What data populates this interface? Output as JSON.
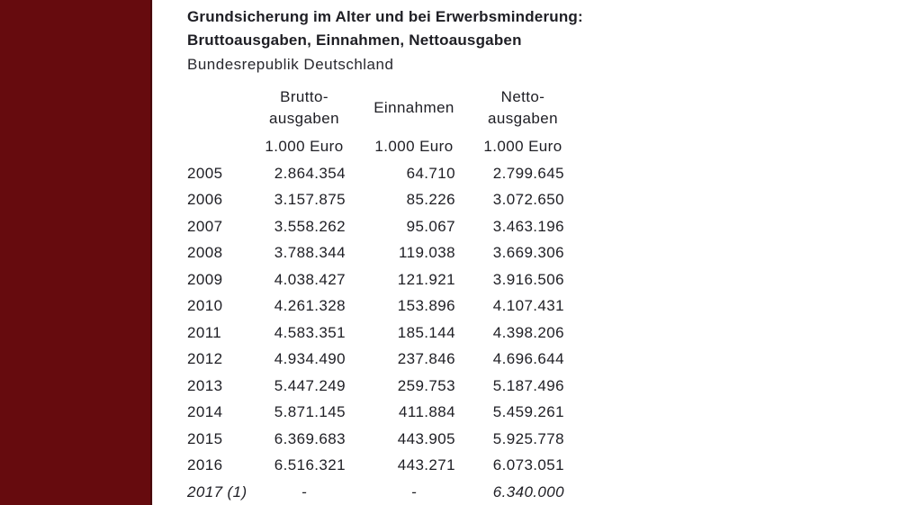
{
  "colors": {
    "sidebar": "#660B0E",
    "sidebar_edge": "#470709",
    "sidebar_separator": "#F2E9E9",
    "text": "#1E1E24",
    "background": "#FFFFFF"
  },
  "header": {
    "title_line1": "Grundsicherung im Alter und bei Erwerbsminderung:",
    "title_line2": "Bruttoausgaben, Einnahmen, Nettoausgaben",
    "subtitle": "Bundesrepublik Deutschland"
  },
  "table_header": {
    "col_year": "",
    "col_brutto": "Brutto-\nausgaben",
    "col_einnahmen": "Einnahmen",
    "col_netto": "Netto-\nausgaben",
    "unit": "1.000 Euro"
  },
  "chart_data": {
    "type": "table",
    "title": "Grundsicherung im Alter und bei Erwerbsminderung: Bruttoausgaben, Einnahmen, Nettoausgaben",
    "subtitle": "Bundesrepublik Deutschland",
    "columns": [
      "",
      "Bruttoausgaben (1.000 Euro)",
      "Einnahmen (1.000 Euro)",
      "Nettoausgaben (1.000 Euro)"
    ],
    "rows": [
      {
        "year": "2005",
        "values": [
          "2.864.354",
          "64.710",
          "2.799.645"
        ],
        "italic": false
      },
      {
        "year": "2006",
        "values": [
          "3.157.875",
          "85.226",
          "3.072.650"
        ],
        "italic": false
      },
      {
        "year": "2007",
        "values": [
          "3.558.262",
          "95.067",
          "3.463.196"
        ],
        "italic": false
      },
      {
        "year": "2008",
        "values": [
          "3.788.344",
          "119.038",
          "3.669.306"
        ],
        "italic": false
      },
      {
        "year": "2009",
        "values": [
          "4.038.427",
          "121.921",
          "3.916.506"
        ],
        "italic": false
      },
      {
        "year": "2010",
        "values": [
          "4.261.328",
          "153.896",
          "4.107.431"
        ],
        "italic": false
      },
      {
        "year": "2011",
        "values": [
          "4.583.351",
          "185.144",
          "4.398.206"
        ],
        "italic": false
      },
      {
        "year": "2012",
        "values": [
          "4.934.490",
          "237.846",
          "4.696.644"
        ],
        "italic": false
      },
      {
        "year": "2013",
        "values": [
          "5.447.249",
          "259.753",
          "5.187.496"
        ],
        "italic": false
      },
      {
        "year": "2014",
        "values": [
          "5.871.145",
          "411.884",
          "5.459.261"
        ],
        "italic": false
      },
      {
        "year": "2015",
        "values": [
          "6.369.683",
          "443.905",
          "5.925.778"
        ],
        "italic": false
      },
      {
        "year": "2016",
        "values": [
          "6.516.321",
          "443.271",
          "6.073.051"
        ],
        "italic": false
      },
      {
        "year": "2017 (1)",
        "values": [
          "-",
          "-",
          "6.340.000"
        ],
        "italic": true
      }
    ]
  }
}
